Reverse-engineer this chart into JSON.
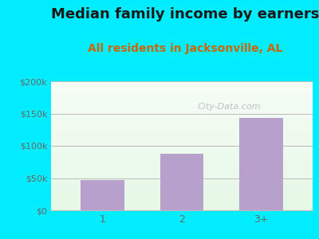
{
  "title": "Median family income by earners",
  "subtitle": "All residents in Jacksonville, AL",
  "categories": [
    "1",
    "2",
    "3+"
  ],
  "values": [
    47000,
    88000,
    143000
  ],
  "bar_color": "#b8a0cc",
  "ylim": [
    0,
    200000
  ],
  "yticks": [
    0,
    50000,
    100000,
    150000,
    200000
  ],
  "ytick_labels": [
    "$0",
    "$50k",
    "$100k",
    "$150k",
    "$200k"
  ],
  "background_outer": "#00eeff",
  "title_fontsize": 13,
  "subtitle_fontsize": 10,
  "watermark_text": "City-Data.com",
  "grid_color": "#bbbbbb",
  "tick_color": "#666666",
  "subtitle_color": "#cc6600"
}
